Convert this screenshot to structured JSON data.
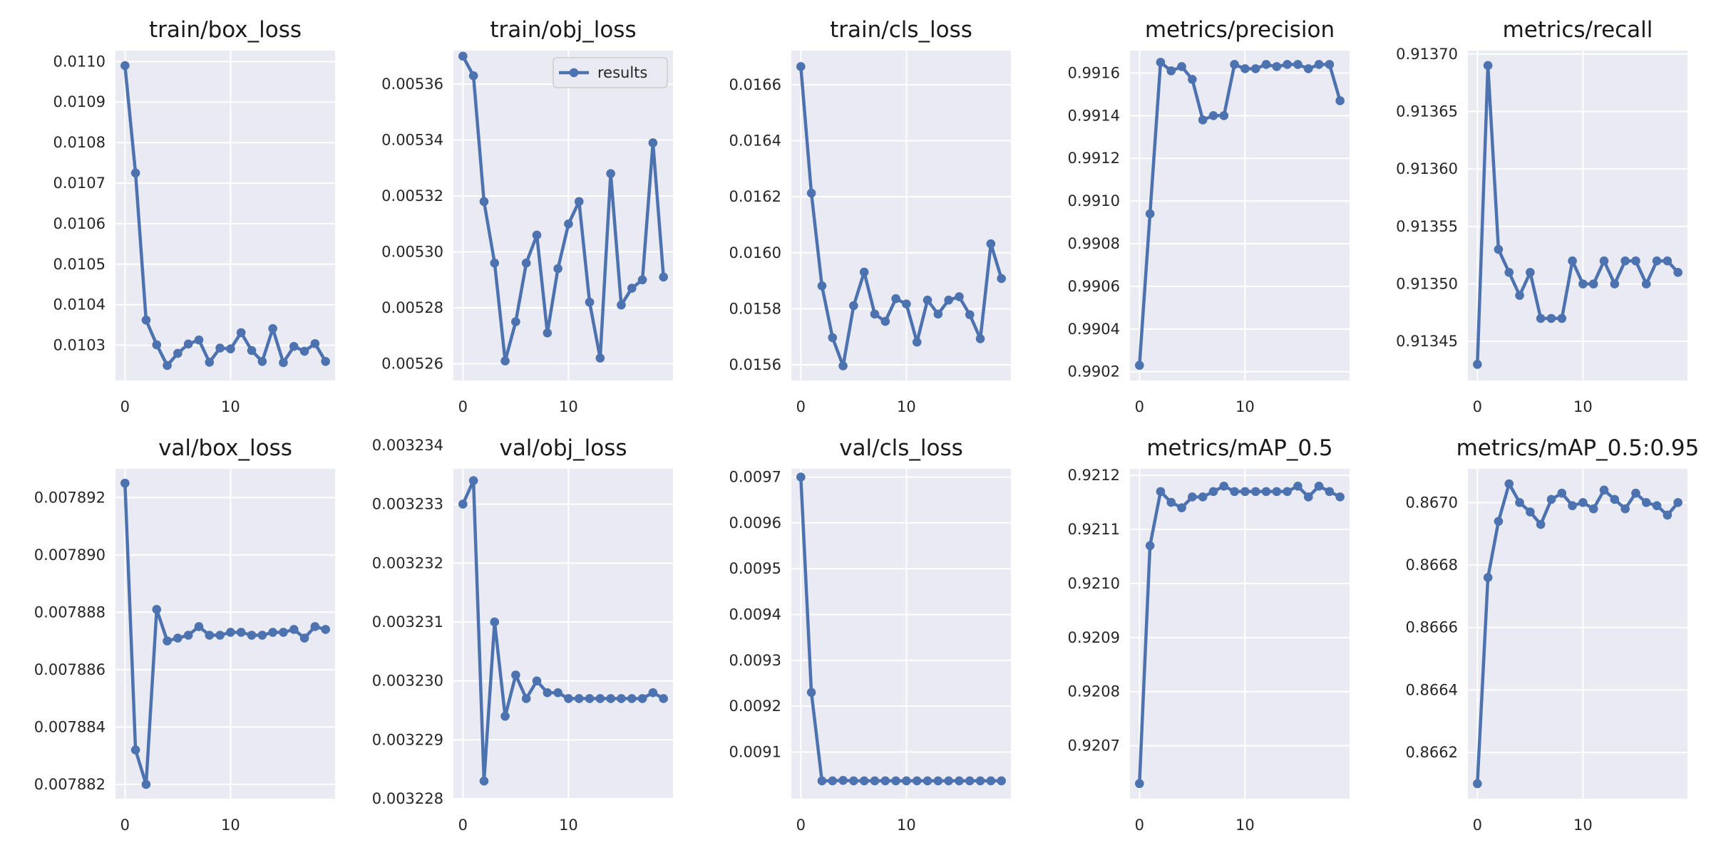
{
  "chart_data": [
    {
      "type": "line",
      "title": "train/box_loss",
      "x": [
        0,
        1,
        2,
        3,
        4,
        5,
        6,
        7,
        8,
        9,
        10,
        11,
        12,
        13,
        14,
        15,
        16,
        17,
        18,
        19
      ],
      "series": [
        {
          "values": [
            0.01099,
            0.010725,
            0.010362,
            0.010301,
            0.01025,
            0.01028,
            0.010303,
            0.010313,
            0.010258,
            0.010293,
            0.010291,
            0.010331,
            0.010287,
            0.01026,
            0.010341,
            0.010257,
            0.010297,
            0.010285,
            0.010304,
            0.01026
          ]
        }
      ],
      "xticks": [
        0,
        10
      ],
      "xlim": [
        -0.9,
        19.9
      ],
      "yticks": [
        0.0103,
        0.0104,
        0.0105,
        0.0106,
        0.0107,
        0.0108,
        0.0109,
        0.011
      ],
      "ytick_labels": [
        "0.0103",
        "0.0104",
        "0.0105",
        "0.0106",
        "0.0107",
        "0.0108",
        "0.0109",
        "0.0110"
      ],
      "ylim": [
        0.010213,
        0.011027
      ]
    },
    {
      "type": "line",
      "title": "train/obj_loss",
      "legend": {
        "label": "results",
        "position": "top-right"
      },
      "x": [
        0,
        1,
        2,
        3,
        4,
        5,
        6,
        7,
        8,
        9,
        10,
        11,
        12,
        13,
        14,
        15,
        16,
        17,
        18,
        19
      ],
      "series": [
        {
          "name": "results",
          "values": [
            0.00537,
            0.005363,
            0.005318,
            0.005296,
            0.005261,
            0.005275,
            0.005296,
            0.005306,
            0.005271,
            0.005294,
            0.00531,
            0.005318,
            0.005282,
            0.005262,
            0.005328,
            0.005281,
            0.005287,
            0.00529,
            0.005339,
            0.005291
          ]
        }
      ],
      "xticks": [
        0,
        10
      ],
      "xlim": [
        -0.9,
        19.9
      ],
      "yticks": [
        0.00526,
        0.00528,
        0.0053,
        0.00532,
        0.00534,
        0.00536
      ],
      "ytick_labels": [
        "0.00526",
        "0.00528",
        "0.00530",
        "0.00532",
        "0.00534",
        "0.00536"
      ],
      "ylim": [
        0.005254,
        0.005372
      ]
    },
    {
      "type": "line",
      "title": "train/cls_loss",
      "x": [
        0,
        1,
        2,
        3,
        4,
        5,
        6,
        7,
        8,
        9,
        10,
        11,
        12,
        13,
        14,
        15,
        16,
        17,
        18,
        19
      ],
      "series": [
        {
          "values": [
            0.016665,
            0.016213,
            0.015882,
            0.015697,
            0.015596,
            0.015811,
            0.015931,
            0.015781,
            0.015755,
            0.015836,
            0.015817,
            0.015681,
            0.015831,
            0.015781,
            0.015831,
            0.015843,
            0.015779,
            0.015693,
            0.016032,
            0.015908
          ]
        }
      ],
      "xticks": [
        0,
        10
      ],
      "xlim": [
        -0.9,
        19.9
      ],
      "yticks": [
        0.0156,
        0.0158,
        0.016,
        0.0162,
        0.0164,
        0.0166
      ],
      "ytick_labels": [
        "0.0156",
        "0.0158",
        "0.0160",
        "0.0162",
        "0.0164",
        "0.0166"
      ],
      "ylim": [
        0.015544,
        0.016722
      ]
    },
    {
      "type": "line",
      "title": "metrics/precision",
      "x": [
        0,
        1,
        2,
        3,
        4,
        5,
        6,
        7,
        8,
        9,
        10,
        11,
        12,
        13,
        14,
        15,
        16,
        17,
        18,
        19
      ],
      "series": [
        {
          "values": [
            0.99023,
            0.99094,
            0.99165,
            0.99161,
            0.99163,
            0.99157,
            0.99138,
            0.9914,
            0.9914,
            0.99164,
            0.99162,
            0.99162,
            0.99164,
            0.99163,
            0.99164,
            0.99164,
            0.99162,
            0.99164,
            0.99164,
            0.99147
          ]
        }
      ],
      "xticks": [
        0,
        10
      ],
      "xlim": [
        -0.9,
        19.9
      ],
      "yticks": [
        0.9902,
        0.9904,
        0.9906,
        0.9908,
        0.991,
        0.9912,
        0.9914,
        0.9916
      ],
      "ytick_labels": [
        "0.9902",
        "0.9904",
        "0.9906",
        "0.9908",
        "0.9910",
        "0.9912",
        "0.9914",
        "0.9916"
      ],
      "ylim": [
        0.990159,
        0.991705
      ]
    },
    {
      "type": "line",
      "title": "metrics/recall",
      "x": [
        0,
        1,
        2,
        3,
        4,
        5,
        6,
        7,
        8,
        9,
        10,
        11,
        12,
        13,
        14,
        15,
        16,
        17,
        18,
        19
      ],
      "series": [
        {
          "values": [
            0.91343,
            0.91369,
            0.91353,
            0.91351,
            0.91349,
            0.91351,
            0.91347,
            0.91347,
            0.91347,
            0.91352,
            0.9135,
            0.9135,
            0.91352,
            0.9135,
            0.91352,
            0.91352,
            0.9135,
            0.91352,
            0.91352,
            0.91351
          ]
        }
      ],
      "xticks": [
        0,
        10
      ],
      "xlim": [
        -0.9,
        19.9
      ],
      "yticks": [
        0.91345,
        0.9135,
        0.91355,
        0.9136,
        0.91365,
        0.9137
      ],
      "ytick_labels": [
        "0.91345",
        "0.91350",
        "0.91355",
        "0.91360",
        "0.91365",
        "0.91370"
      ],
      "ylim": [
        0.913416,
        0.913703
      ]
    },
    {
      "type": "line",
      "title": "val/box_loss",
      "x": [
        0,
        1,
        2,
        3,
        4,
        5,
        6,
        7,
        8,
        9,
        10,
        11,
        12,
        13,
        14,
        15,
        16,
        17,
        18,
        19
      ],
      "series": [
        {
          "values": [
            0.0078925,
            0.0078832,
            0.007882,
            0.0078881,
            0.007887,
            0.0078871,
            0.0078872,
            0.0078875,
            0.0078872,
            0.0078872,
            0.0078873,
            0.0078873,
            0.0078872,
            0.0078872,
            0.0078873,
            0.0078873,
            0.0078874,
            0.0078871,
            0.0078875,
            0.0078874
          ]
        }
      ],
      "xticks": [
        0,
        10
      ],
      "xlim": [
        -0.9,
        19.9
      ],
      "yticks": [
        0.007882,
        0.007884,
        0.007886,
        0.007888,
        0.00789,
        0.007892
      ],
      "ytick_labels": [
        "0.007882",
        "0.007884",
        "0.007886",
        "0.007888",
        "0.007890",
        "0.007892"
      ],
      "ylim": [
        0.0078815,
        0.007893
      ]
    },
    {
      "type": "line",
      "title": "val/obj_loss",
      "x": [
        0,
        1,
        2,
        3,
        4,
        5,
        6,
        7,
        8,
        9,
        10,
        11,
        12,
        13,
        14,
        15,
        16,
        17,
        18,
        19
      ],
      "series": [
        {
          "values": [
            0.003233,
            0.0032334,
            0.0032283,
            0.003231,
            0.0032294,
            0.0032301,
            0.0032297,
            0.00323,
            0.0032298,
            0.0032298,
            0.0032297,
            0.0032297,
            0.0032297,
            0.0032297,
            0.0032297,
            0.0032297,
            0.0032297,
            0.0032297,
            0.0032298,
            0.0032297
          ]
        }
      ],
      "xticks": [
        0,
        10
      ],
      "xlim": [
        -0.9,
        19.9
      ],
      "yticks": [
        0.003228,
        0.003229,
        0.00323,
        0.003231,
        0.003232,
        0.003233,
        0.003234
      ],
      "ytick_labels": [
        "0.003228",
        "0.003229",
        "0.003230",
        "0.003231",
        "0.003232",
        "0.003233",
        "0.003234"
      ],
      "ylim": [
        0.003228,
        0.0032336
      ]
    },
    {
      "type": "line",
      "title": "val/cls_loss",
      "x": [
        0,
        1,
        2,
        3,
        4,
        5,
        6,
        7,
        8,
        9,
        10,
        11,
        12,
        13,
        14,
        15,
        16,
        17,
        18,
        19
      ],
      "series": [
        {
          "values": [
            0.0097,
            0.00923,
            0.009037,
            0.009037,
            0.009038,
            0.009037,
            0.009037,
            0.009037,
            0.009037,
            0.009037,
            0.009037,
            0.009037,
            0.009037,
            0.009037,
            0.009037,
            0.009037,
            0.009037,
            0.009037,
            0.009037,
            0.009037
          ]
        }
      ],
      "xticks": [
        0,
        10
      ],
      "xlim": [
        -0.9,
        19.9
      ],
      "yticks": [
        0.0091,
        0.0092,
        0.0093,
        0.0094,
        0.0095,
        0.0096,
        0.0097
      ],
      "ytick_labels": [
        "0.0091",
        "0.0092",
        "0.0093",
        "0.0094",
        "0.0095",
        "0.0096",
        "0.0097"
      ],
      "ylim": [
        0.008998,
        0.009718
      ]
    },
    {
      "type": "line",
      "title": "metrics/mAP_0.5",
      "x": [
        0,
        1,
        2,
        3,
        4,
        5,
        6,
        7,
        8,
        9,
        10,
        11,
        12,
        13,
        14,
        15,
        16,
        17,
        18,
        19
      ],
      "series": [
        {
          "values": [
            0.92063,
            0.92107,
            0.92117,
            0.92115,
            0.92114,
            0.92116,
            0.92116,
            0.92117,
            0.92118,
            0.92117,
            0.92117,
            0.92117,
            0.92117,
            0.92117,
            0.92117,
            0.92118,
            0.92116,
            0.92118,
            0.92117,
            0.92116
          ]
        }
      ],
      "xticks": [
        0,
        10
      ],
      "xlim": [
        -0.9,
        19.9
      ],
      "yticks": [
        0.9207,
        0.9208,
        0.9209,
        0.921,
        0.9211,
        0.9212
      ],
      "ytick_labels": [
        "0.9207",
        "0.9208",
        "0.9209",
        "0.9210",
        "0.9211",
        "0.9212"
      ],
      "ylim": [
        0.920602,
        0.921212
      ]
    },
    {
      "type": "line",
      "title": "metrics/mAP_0.5:0.95",
      "x": [
        0,
        1,
        2,
        3,
        4,
        5,
        6,
        7,
        8,
        9,
        10,
        11,
        12,
        13,
        14,
        15,
        16,
        17,
        18,
        19
      ],
      "series": [
        {
          "values": [
            0.8661,
            0.86676,
            0.86694,
            0.86706,
            0.867,
            0.86697,
            0.86693,
            0.86701,
            0.86703,
            0.86699,
            0.867,
            0.86698,
            0.86704,
            0.86701,
            0.86698,
            0.86703,
            0.867,
            0.86699,
            0.86696,
            0.867
          ]
        }
      ],
      "xticks": [
        0,
        10
      ],
      "xlim": [
        -0.9,
        19.9
      ],
      "yticks": [
        0.8662,
        0.8664,
        0.8666,
        0.8668,
        0.867
      ],
      "ytick_labels": [
        "0.8662",
        "0.8664",
        "0.8666",
        "0.8668",
        "0.8670"
      ],
      "ylim": [
        0.866052,
        0.867108
      ]
    }
  ]
}
